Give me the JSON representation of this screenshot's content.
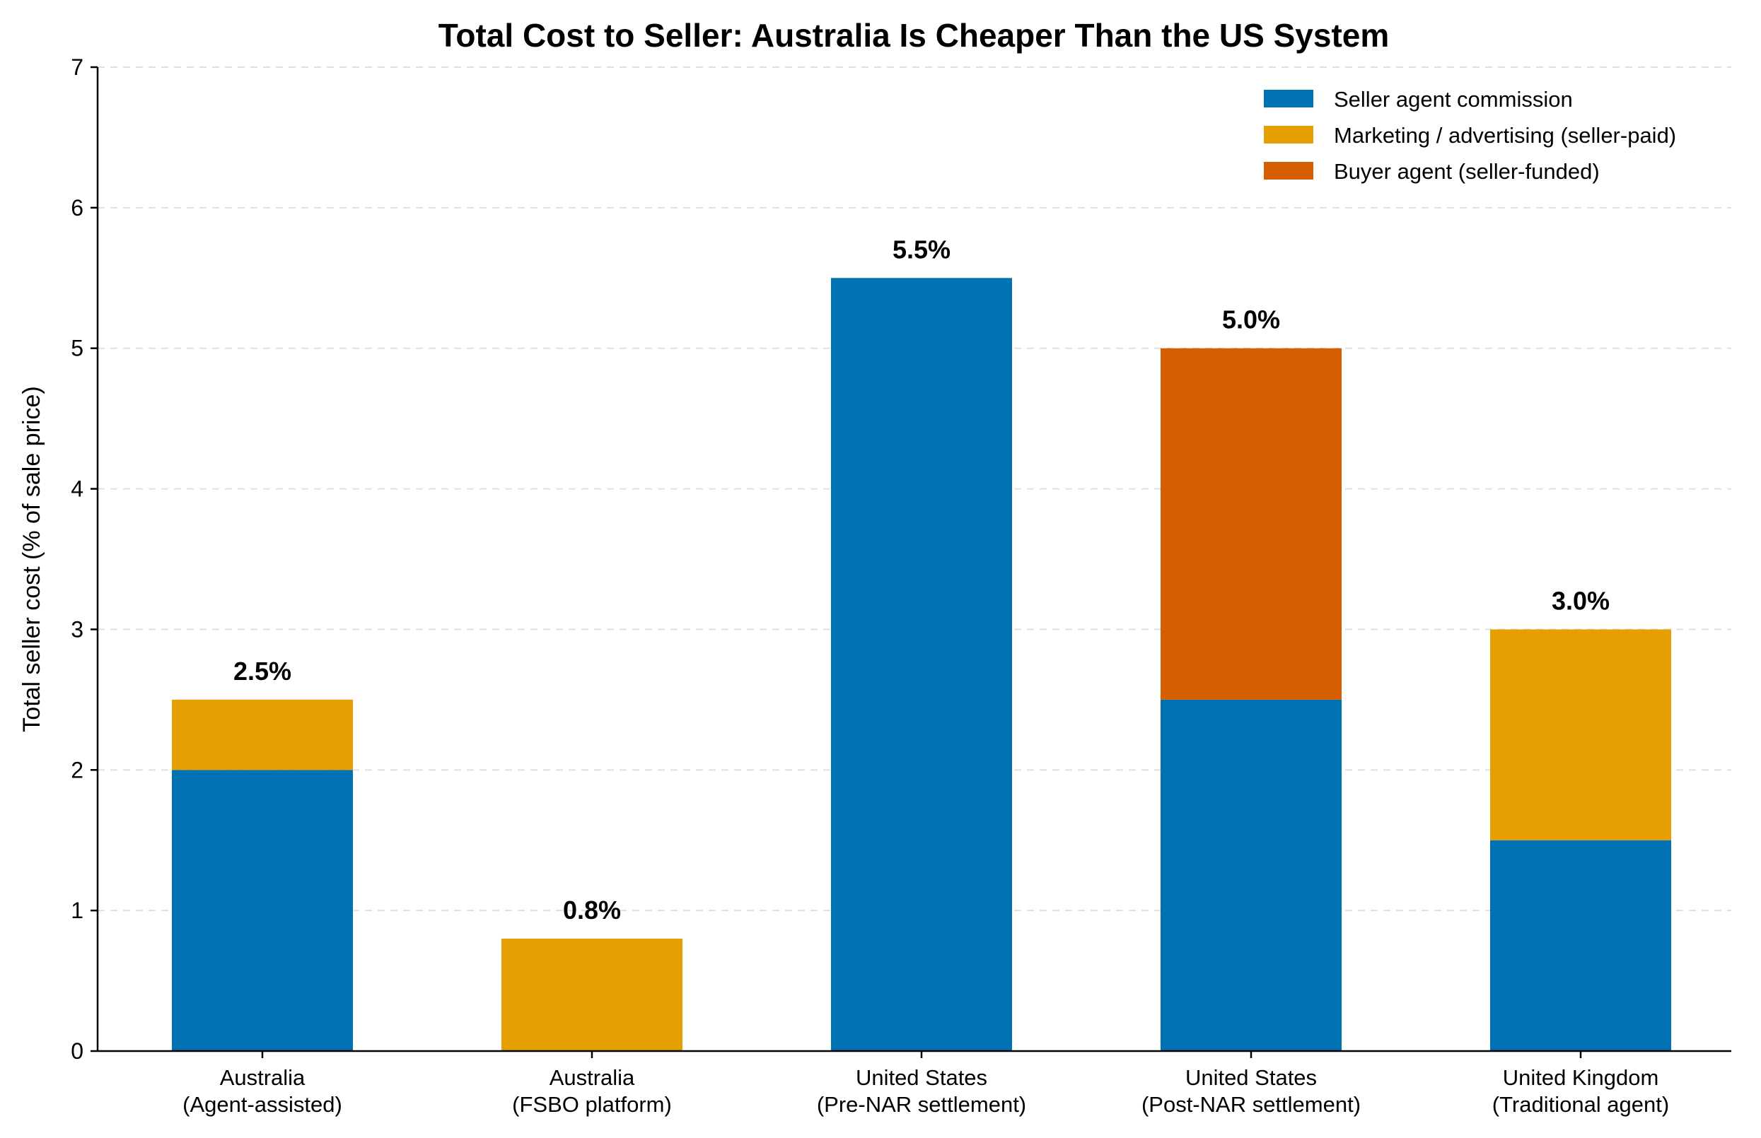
{
  "chart_data": {
    "type": "bar",
    "stacked": true,
    "title": "Total Cost to Seller: Australia Is Cheaper Than the US System",
    "ylabel": "Total seller cost (% of sale price)",
    "xlabel": "",
    "ylim": [
      0,
      7
    ],
    "yticks": [
      0,
      1,
      2,
      3,
      4,
      5,
      6,
      7
    ],
    "grid": "horizontal dashed",
    "legend_position": "top-right",
    "categories": [
      [
        "Australia",
        "(Agent-assisted)"
      ],
      [
        "Australia",
        "(FSBO platform)"
      ],
      [
        "United States",
        "(Pre-NAR settlement)"
      ],
      [
        "United States",
        "(Post-NAR settlement)"
      ],
      [
        "United Kingdom",
        "(Traditional agent)"
      ]
    ],
    "series": [
      {
        "name": "Seller agent commission",
        "color": "#0072b2",
        "values": [
          2.0,
          0.0,
          5.5,
          2.5,
          1.5
        ]
      },
      {
        "name": "Marketing / advertising (seller-paid)",
        "color": "#e69f00",
        "values": [
          0.5,
          0.8,
          0.0,
          0.0,
          1.5
        ]
      },
      {
        "name": "Buyer agent (seller-funded)",
        "color": "#d55e00",
        "values": [
          0.0,
          0.0,
          0.0,
          2.5,
          0.0
        ]
      }
    ],
    "totals_labels": [
      "2.5%",
      "0.8%",
      "5.5%",
      "5.0%",
      "3.0%"
    ]
  }
}
